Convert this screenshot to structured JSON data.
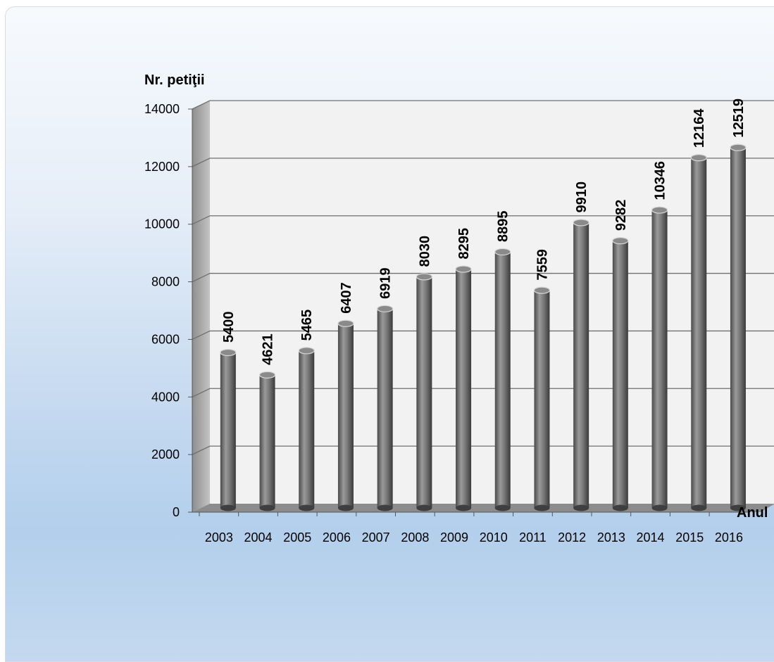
{
  "chart_data": {
    "type": "bar",
    "style": "3d-cylinder",
    "title": "",
    "ylabel": "Nr. petiţii",
    "xlabel": "Anul",
    "ylim": [
      0,
      14000
    ],
    "yticks": [
      "0",
      "2000",
      "4000",
      "6000",
      "8000",
      "10000",
      "12000",
      "14000"
    ],
    "grid": true,
    "categories": [
      "2003",
      "2004",
      "2005",
      "2006",
      "2007",
      "2008",
      "2009",
      "2010",
      "2011",
      "2012",
      "2013",
      "2014",
      "2015",
      "2016"
    ],
    "values": [
      5400,
      4621,
      5465,
      6407,
      6919,
      8030,
      8295,
      8895,
      7559,
      9910,
      9282,
      10346,
      12164,
      12519
    ],
    "data_labels": [
      "5400",
      "4621",
      "5465",
      "6407",
      "6919",
      "8030",
      "8295",
      "8895",
      "7559",
      "9910",
      "9282",
      "10346",
      "12164",
      "12519"
    ],
    "colors": {
      "bar_dark": "#4f4f4f",
      "bar_light": "#9a9a9a",
      "wall": "#f2f2f2",
      "side_wall": "#a9a9a9",
      "floor": "#8c8c8c",
      "grid": "#6f6f6f"
    }
  }
}
